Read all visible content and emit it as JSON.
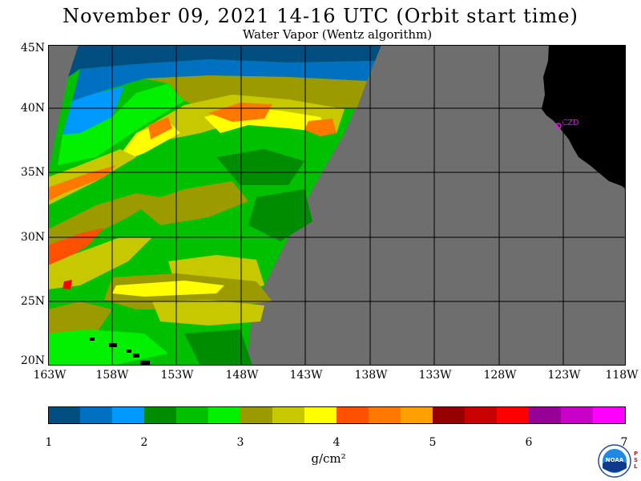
{
  "title": "November 09, 2021  14-16 UTC  (Orbit start time)",
  "subtitle": "Water Vapor (Wentz algorithm)",
  "map": {
    "latitude_labels": [
      "45N",
      "40N",
      "35N",
      "30N",
      "25N",
      "20N"
    ],
    "longitude_labels": [
      "163W",
      "158W",
      "153W",
      "148W",
      "143W",
      "138W",
      "133W",
      "128W",
      "123W",
      "118W"
    ],
    "station_label": "CZD",
    "colors": {
      "land": "#000000",
      "no_data": "#6e6e6e",
      "station": "#ff00ff",
      "grid": "#000000"
    }
  },
  "colorbar": {
    "tick_labels": [
      "1",
      "2",
      "3",
      "4",
      "5",
      "6",
      "7"
    ],
    "units": "g/cm²",
    "colors": [
      "#004d80",
      "#0070c0",
      "#0099ff",
      "#008c00",
      "#00c000",
      "#00f000",
      "#9b9b00",
      "#c8c800",
      "#ffff00",
      "#ff5000",
      "#ff7800",
      "#ffa000",
      "#960000",
      "#c80000",
      "#ff0000",
      "#960096",
      "#c800c8",
      "#ff00ff"
    ]
  },
  "logo": {
    "name": "NOAA",
    "lab_letters": "PSL"
  }
}
